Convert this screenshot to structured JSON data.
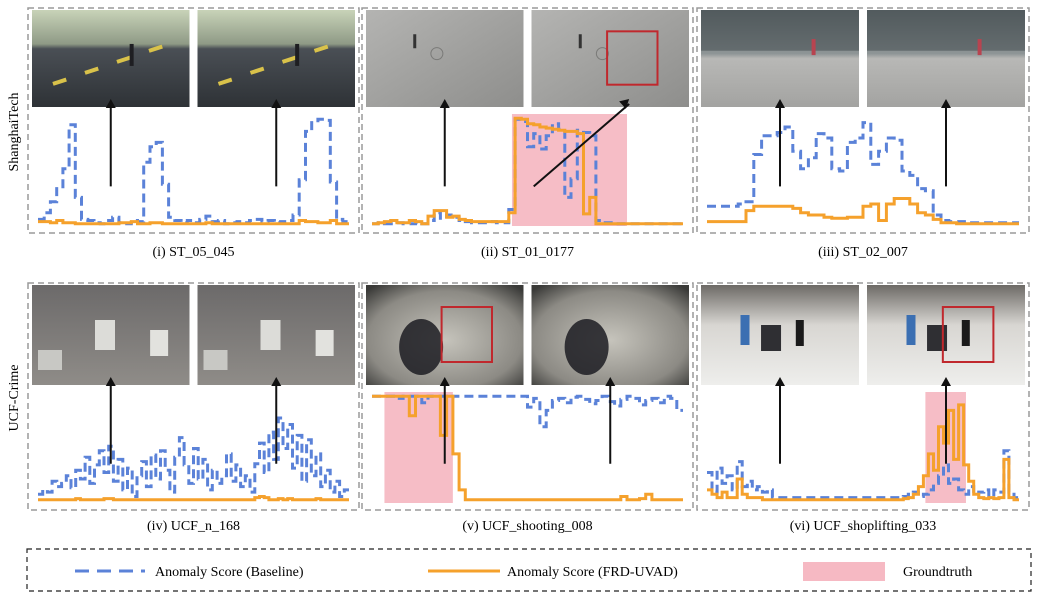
{
  "rows": [
    {
      "label": "ShanghaiTech"
    },
    {
      "label": "UCF-Crime"
    }
  ],
  "legend": {
    "baseline": "Anomaly Score (Baseline)",
    "frd": "Anomaly Score (FRD-UVAD)",
    "groundtruth": "Groundtruth"
  },
  "colors": {
    "baseline": "#5b82d8",
    "frd": "#f5a12c",
    "groundtruth": "#f6b9c3",
    "bbox": "#c0282d",
    "panel_border": "#9a9a9a"
  },
  "chart_data": [
    {
      "type": "line",
      "caption": "(i) ST_05_045",
      "ylim": [
        0,
        1
      ],
      "frames": [
        "street-road",
        "street-road"
      ],
      "bbox_frame": null,
      "groundtruth": [],
      "series": [
        {
          "values": [
            0.06,
            0.12,
            0.22,
            0.34,
            0.52,
            0.92,
            0.26,
            0.06,
            0.05,
            0.03,
            0.02,
            0.05,
            0.08,
            0.03,
            0.02,
            0.05,
            0.04,
            0.58,
            0.72,
            0.76,
            0.38,
            0.08,
            0.05,
            0.03,
            0.05,
            0.03,
            0.06,
            0.09,
            0.04,
            0.05,
            0.02,
            0.03,
            0.04,
            0.03,
            0.05,
            0.06,
            0.04,
            0.05,
            0.03,
            0.04,
            0.05,
            0.1,
            0.42,
            0.86,
            0.94,
            0.97,
            0.96,
            0.4,
            0.06,
            0.04
          ]
        },
        {
          "values": [
            0.04,
            0.04,
            0.03,
            0.05,
            0.03,
            0.03,
            0.02,
            0.02,
            0.02,
            0.02,
            0.02,
            0.02,
            0.02,
            0.03,
            0.03,
            0.04,
            0.02,
            0.02,
            0.03,
            0.03,
            0.02,
            0.02,
            0.02,
            0.02,
            0.02,
            0.02,
            0.02,
            0.03,
            0.02,
            0.02,
            0.02,
            0.02,
            0.02,
            0.02,
            0.02,
            0.02,
            0.02,
            0.02,
            0.02,
            0.02,
            0.02,
            0.02,
            0.05,
            0.04,
            0.04,
            0.03,
            0.03,
            0.05,
            0.02,
            0.02
          ]
        }
      ]
    },
    {
      "type": "line",
      "caption": "(ii) ST_01_0177",
      "ylim": [
        0,
        1
      ],
      "frames": [
        "plaza-pavement",
        "plaza-pavement"
      ],
      "bbox_frame": 1,
      "groundtruth": [
        [
          0.45,
          0.82
        ]
      ],
      "series": [
        {
          "values": [
            0.02,
            0.03,
            0.02,
            0.02,
            0.03,
            0.02,
            0.02,
            0.03,
            0.02,
            0.05,
            0.12,
            0.07,
            0.1,
            0.08,
            0.05,
            0.04,
            0.03,
            0.03,
            0.03,
            0.04,
            0.03,
            0.03,
            0.15,
            0.97,
            0.95,
            0.72,
            0.84,
            0.7,
            0.82,
            0.93,
            0.88,
            0.26,
            0.43,
            0.87,
            0.85,
            0.82,
            0.05,
            0.03,
            0.03,
            0.02,
            0.02,
            0.02,
            0.02,
            0.02,
            0.02,
            0.02,
            0.02,
            0.02,
            0.02,
            0.02
          ]
        },
        {
          "values": [
            0.02,
            0.03,
            0.04,
            0.05,
            0.03,
            0.03,
            0.05,
            0.04,
            0.02,
            0.09,
            0.14,
            0.14,
            0.08,
            0.09,
            0.06,
            0.05,
            0.04,
            0.04,
            0.04,
            0.04,
            0.04,
            0.04,
            0.12,
            0.98,
            0.97,
            0.93,
            0.92,
            0.9,
            0.89,
            0.88,
            0.87,
            0.86,
            0.86,
            0.84,
            0.11,
            0.26,
            0.02,
            0.02,
            0.02,
            0.02,
            0.02,
            0.02,
            0.02,
            0.02,
            0.02,
            0.02,
            0.02,
            0.02,
            0.02,
            0.02
          ]
        }
      ]
    },
    {
      "type": "line",
      "caption": "(iii) ST_02_007",
      "ylim": [
        0,
        1
      ],
      "frames": [
        "storefront-walkway",
        "storefront-walkway"
      ],
      "bbox_frame": null,
      "groundtruth": [],
      "series": [
        {
          "values": [
            0.18,
            0.18,
            0.18,
            0.18,
            0.2,
            0.22,
            0.65,
            0.82,
            0.82,
            0.85,
            0.9,
            0.68,
            0.52,
            0.62,
            0.84,
            0.8,
            0.52,
            0.5,
            0.76,
            0.8,
            0.94,
            0.56,
            0.68,
            0.8,
            0.78,
            0.5,
            0.46,
            0.34,
            0.32,
            0.1,
            0.05,
            0.04,
            0.04,
            0.03,
            0.03,
            0.03,
            0.03,
            0.03,
            0.03,
            0.03
          ]
        },
        {
          "values": [
            0.04,
            0.04,
            0.04,
            0.04,
            0.04,
            0.14,
            0.18,
            0.18,
            0.18,
            0.18,
            0.18,
            0.16,
            0.12,
            0.1,
            0.1,
            0.08,
            0.07,
            0.07,
            0.08,
            0.08,
            0.18,
            0.2,
            0.05,
            0.2,
            0.25,
            0.25,
            0.2,
            0.12,
            0.1,
            0.06,
            0.03,
            0.03,
            0.02,
            0.02,
            0.02,
            0.02,
            0.02,
            0.02,
            0.02,
            0.02
          ]
        }
      ]
    },
    {
      "type": "line",
      "caption": "(iv) UCF_n_168",
      "ylim": [
        0,
        1
      ],
      "frames": [
        "alley-traffic",
        "alley-traffic"
      ],
      "bbox_frame": null,
      "groundtruth": [],
      "series": [
        {
          "values": [
            0.08,
            0.12,
            0.1,
            0.2,
            0.15,
            0.18,
            0.25,
            0.14,
            0.3,
            0.22,
            0.42,
            0.18,
            0.35,
            0.48,
            0.28,
            0.52,
            0.2,
            0.4,
            0.12,
            0.32,
            0.06,
            0.25,
            0.38,
            0.15,
            0.44,
            0.22,
            0.48,
            0.3,
            0.1,
            0.42,
            0.6,
            0.35,
            0.18,
            0.5,
            0.22,
            0.4,
            0.12,
            0.3,
            0.18,
            0.25,
            0.45,
            0.2,
            0.35,
            0.15,
            0.25,
            0.1,
            0.36,
            0.55,
            0.28,
            0.65,
            0.4,
            0.78,
            0.5,
            0.72,
            0.32,
            0.62,
            0.2,
            0.58,
            0.25,
            0.45,
            0.15,
            0.3,
            0.1,
            0.2,
            0.06,
            0.12
          ]
        },
        {
          "values": [
            0.03,
            0.03,
            0.03,
            0.03,
            0.03,
            0.03,
            0.03,
            0.03,
            0.04,
            0.03,
            0.03,
            0.03,
            0.03,
            0.03,
            0.04,
            0.04,
            0.03,
            0.03,
            0.03,
            0.03,
            0.03,
            0.03,
            0.03,
            0.03,
            0.03,
            0.03,
            0.03,
            0.03,
            0.03,
            0.03,
            0.03,
            0.03,
            0.03,
            0.03,
            0.03,
            0.03,
            0.03,
            0.03,
            0.03,
            0.03,
            0.03,
            0.03,
            0.03,
            0.03,
            0.03,
            0.03,
            0.05,
            0.06,
            0.05,
            0.03,
            0.03,
            0.04,
            0.03,
            0.04,
            0.03,
            0.03,
            0.03,
            0.03,
            0.03,
            0.04,
            0.03,
            0.03,
            0.03,
            0.03,
            0.03,
            0.03
          ]
        }
      ]
    },
    {
      "type": "line",
      "caption": "(v) UCF_shooting_008",
      "ylim": [
        0,
        1
      ],
      "frames": [
        "fisheye-lobby",
        "fisheye-lobby"
      ],
      "bbox_frame": 0,
      "groundtruth": [
        [
          0.04,
          0.26
        ]
      ],
      "series": [
        {
          "values": [
            0.98,
            0.98,
            0.98,
            0.98,
            0.96,
            0.98,
            0.98,
            0.98,
            0.92,
            0.98,
            0.98,
            0.98,
            0.97,
            0.98,
            0.98,
            0.98,
            0.98,
            0.98,
            0.98,
            0.98,
            0.98,
            0.98,
            0.98,
            0.98,
            0.98,
            0.88,
            0.96,
            0.7,
            0.85,
            0.94,
            0.96,
            0.92,
            0.97,
            0.98,
            0.95,
            0.91,
            0.94,
            0.98,
            0.93,
            0.89,
            0.95,
            0.98,
            0.96,
            0.9,
            0.94,
            0.96,
            0.92,
            0.98,
            0.96,
            0.85
          ]
        },
        {
          "values": [
            0.98,
            0.98,
            0.98,
            0.98,
            0.98,
            0.98,
            0.8,
            0.98,
            0.98,
            0.98,
            0.98,
            0.62,
            0.98,
            0.45,
            0.12,
            0.03,
            0.03,
            0.03,
            0.03,
            0.03,
            0.03,
            0.03,
            0.03,
            0.03,
            0.03,
            0.03,
            0.03,
            0.03,
            0.03,
            0.03,
            0.03,
            0.03,
            0.03,
            0.03,
            0.03,
            0.03,
            0.03,
            0.03,
            0.03,
            0.03,
            0.06,
            0.03,
            0.03,
            0.04,
            0.08,
            0.03,
            0.03,
            0.03,
            0.03,
            0.03
          ]
        }
      ]
    },
    {
      "type": "line",
      "caption": "(vi) UCF_shoplifting_033",
      "ylim": [
        0,
        1
      ],
      "frames": [
        "clothing-store",
        "clothing-store"
      ],
      "bbox_frame": 1,
      "groundtruth": [
        [
          0.7,
          0.83
        ]
      ],
      "series": [
        {
          "values": [
            0.28,
            0.1,
            0.32,
            0.18,
            0.25,
            0.12,
            0.38,
            0.15,
            0.2,
            0.12,
            0.15,
            0.1,
            0.12,
            0.05,
            0.05,
            0.05,
            0.05,
            0.05,
            0.05,
            0.05,
            0.05,
            0.05,
            0.05,
            0.05,
            0.05,
            0.05,
            0.05,
            0.05,
            0.05,
            0.05,
            0.05,
            0.05,
            0.05,
            0.05,
            0.05,
            0.05,
            0.05,
            0.05,
            0.05,
            0.06,
            0.08,
            0.1,
            0.06,
            0.08,
            0.12,
            0.18,
            0.25,
            0.35,
            0.18,
            0.22,
            0.12,
            0.08,
            0.15,
            0.08,
            0.1,
            0.12,
            0.06,
            0.12,
            0.1,
            0.48,
            0.1,
            0.05
          ]
        },
        {
          "values": [
            0.12,
            0.08,
            0.05,
            0.1,
            0.05,
            0.05,
            0.22,
            0.08,
            0.05,
            0.05,
            0.05,
            0.03,
            0.03,
            0.03,
            0.03,
            0.03,
            0.03,
            0.03,
            0.03,
            0.03,
            0.03,
            0.03,
            0.03,
            0.03,
            0.03,
            0.03,
            0.03,
            0.03,
            0.03,
            0.03,
            0.03,
            0.03,
            0.03,
            0.03,
            0.03,
            0.03,
            0.03,
            0.03,
            0.03,
            0.04,
            0.05,
            0.08,
            0.15,
            0.25,
            0.45,
            0.3,
            0.7,
            0.55,
            0.85,
            0.4,
            0.9,
            0.35,
            0.2,
            0.08,
            0.05,
            0.04,
            0.05,
            0.04,
            0.05,
            0.4,
            0.05,
            0.03
          ]
        }
      ]
    }
  ]
}
